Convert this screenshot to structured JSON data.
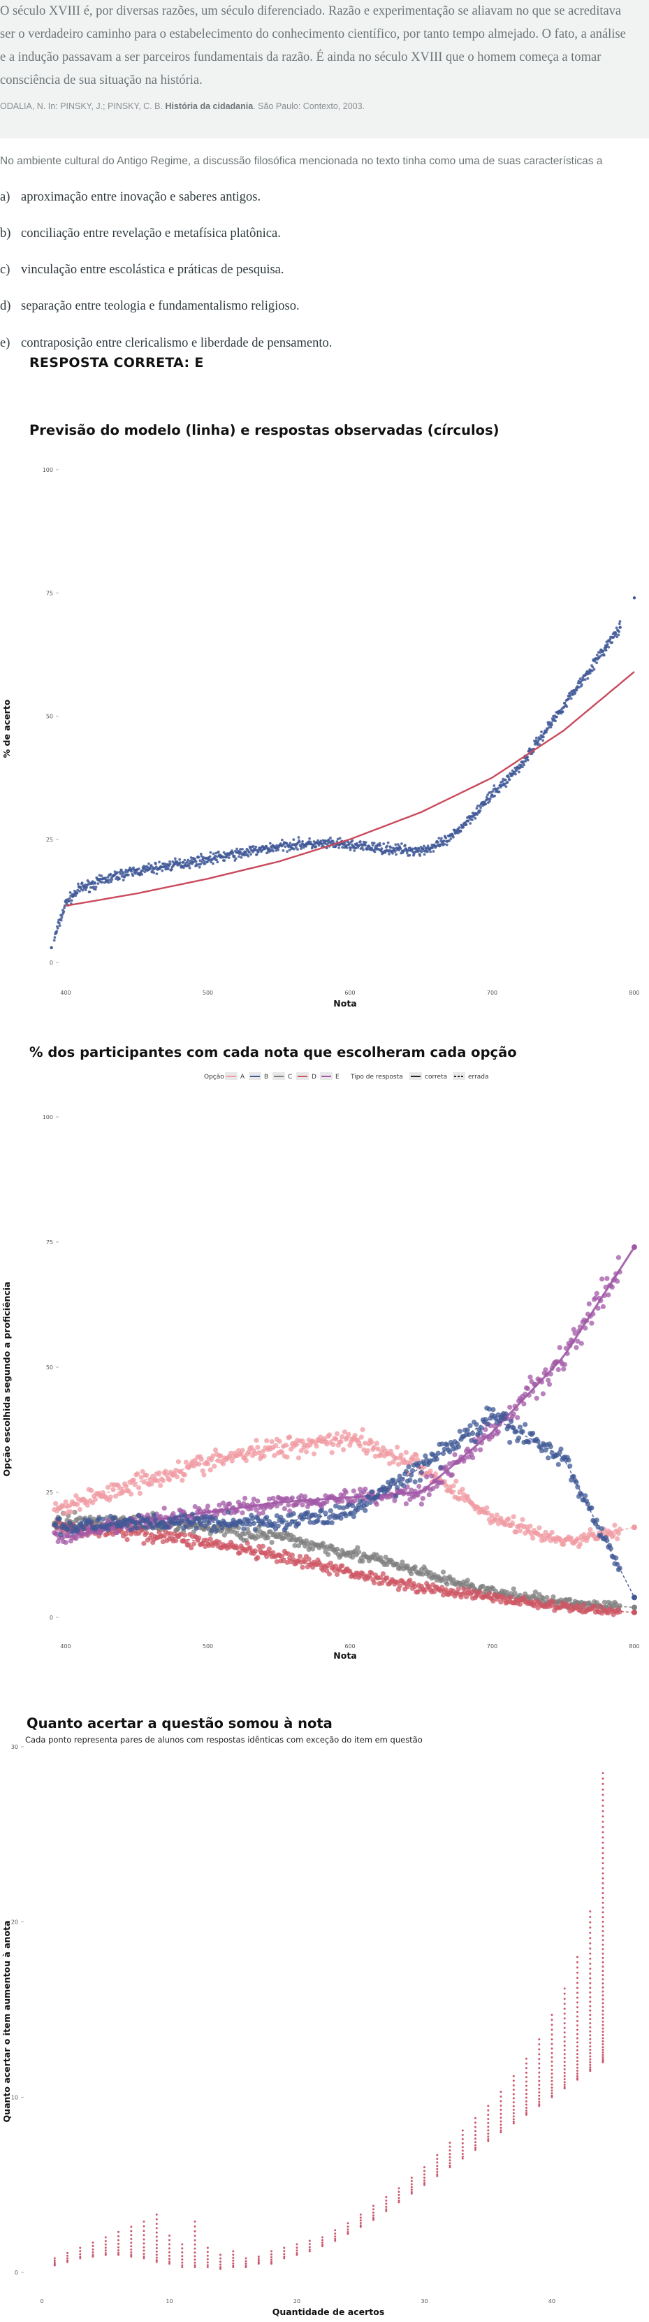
{
  "quote": {
    "text": "O século XVIII é, por diversas razões, um século diferenciado. Razão e experimentação se aliavam no que se acreditava ser o verdadeiro caminho para o estabelecimento do conhecimento científico, por tanto tempo almejado. O fato, a análise e a indução passavam a ser parceiros fundamentais da razão. É ainda no século XVIII que o homem começa a tomar consciência de sua situação na história.",
    "citation_prefix": "ODALIA, N. In: PINSKY, J.; PINSKY, C. B.",
    "citation_title": "História da cidadania",
    "citation_suffix": ". São Paulo: Contexto, 2003."
  },
  "question": "No ambiente cultural do Antigo Regime, a discussão filosófica mencionada no texto tinha como uma de suas características a",
  "alternatives": [
    {
      "letter": "a)",
      "text": "aproximação entre inovação e saberes antigos."
    },
    {
      "letter": "b)",
      "text": "conciliação entre revelação e metafísica platônica."
    },
    {
      "letter": "c)",
      "text": "vinculação entre escolástica e práticas de pesquisa."
    },
    {
      "letter": "d)",
      "text": "separação entre teologia e fundamentalismo religioso."
    },
    {
      "letter": "e)",
      "text": "contraposição entre clericalismo e liberdade de pensamento."
    }
  ],
  "answer": "RESPOSTA CORRETA: E",
  "colors": {
    "blue": "#3f5896",
    "red_line": "#c94a5b",
    "A": "#f09aa2",
    "B": "#3f5896",
    "C": "#7f7f7f",
    "D": "#cd5563",
    "E": "#a158a6",
    "gain": "#c5475d"
  },
  "chart_data": [
    {
      "type": "scatter",
      "title": "Previsão do modelo (linha) e respostas observadas (círculos)",
      "xlabel": "Nota",
      "ylabel": "% de acerto",
      "xlim": [
        390,
        805
      ],
      "ylim": [
        0,
        100
      ],
      "xticks": [
        "400",
        "500",
        "600",
        "700",
        "800"
      ],
      "yticks": [
        "0",
        "25",
        "50",
        "75",
        "100"
      ],
      "grid": false,
      "series": [
        {
          "role": "observed",
          "x": [
            390,
            400,
            410,
            420,
            430,
            440,
            450,
            460,
            470,
            480,
            490,
            500,
            510,
            520,
            530,
            540,
            550,
            560,
            570,
            580,
            590,
            600,
            610,
            620,
            630,
            640,
            650,
            660,
            670,
            680,
            690,
            700,
            710,
            720,
            730,
            740,
            750,
            760,
            770,
            780,
            790,
            800
          ],
          "y": [
            3,
            12,
            15,
            16,
            17,
            18,
            18.5,
            19,
            19.5,
            20,
            20.5,
            21,
            21.5,
            22,
            22.5,
            23,
            23.5,
            24,
            24,
            24,
            24,
            23.8,
            23.5,
            23.2,
            23,
            22.8,
            22.8,
            23.5,
            25,
            28,
            31,
            34,
            37,
            40,
            44,
            48,
            52,
            56,
            60,
            64,
            68,
            74
          ]
        },
        {
          "role": "model",
          "x": [
            400,
            450,
            500,
            550,
            600,
            650,
            700,
            750,
            800
          ],
          "y": [
            11.5,
            14,
            17,
            20.5,
            25,
            30.5,
            37.5,
            47,
            59
          ]
        }
      ]
    },
    {
      "type": "scatter",
      "title": "% dos participantes com cada nota que escolheram cada opção",
      "xlabel": "Nota",
      "ylabel": "Opção escolhida segundo a proficiência",
      "xlim": [
        390,
        805
      ],
      "ylim": [
        0,
        100
      ],
      "xticks": [
        "400",
        "500",
        "600",
        "700",
        "800"
      ],
      "yticks": [
        "0",
        "25",
        "50",
        "75",
        "100"
      ],
      "legend": {
        "position": "top",
        "option_label": "Opção",
        "options": [
          "A",
          "B",
          "C",
          "D",
          "E"
        ],
        "type_label": "Tipo de resposta",
        "types": [
          "correta",
          "errada"
        ]
      },
      "x": [
        400,
        450,
        500,
        550,
        600,
        650,
        700,
        750,
        800
      ],
      "series": [
        {
          "name": "A",
          "values": [
            22,
            27,
            31,
            34,
            36,
            30,
            20,
            15,
            18
          ]
        },
        {
          "name": "B",
          "values": [
            18,
            19,
            19,
            19,
            21,
            30,
            40,
            32,
            4
          ]
        },
        {
          "name": "C",
          "values": [
            19,
            19,
            18,
            16,
            13,
            9,
            5,
            3,
            2
          ]
        },
        {
          "name": "D",
          "values": [
            18,
            17,
            15,
            12,
            9,
            6,
            4,
            2,
            1
          ]
        },
        {
          "name": "E",
          "values": [
            16,
            19,
            21,
            23,
            24,
            25,
            37,
            52,
            74
          ]
        }
      ]
    },
    {
      "type": "scatter",
      "title": "Quanto acertar a questão somou à nota",
      "subtitle": "Cada ponto representa pares de alunos com respostas idênticas com exceção do item em questão",
      "xlabel": "Quantidade de acertos",
      "ylabel": "Quanto acertar o item aumentou à anota",
      "xlim": [
        0,
        45
      ],
      "ylim": [
        -0.5,
        30
      ],
      "xticks": [
        "0",
        "10",
        "20",
        "30",
        "40"
      ],
      "yticks": [
        "0",
        "10",
        "20",
        "30"
      ],
      "x": [
        1,
        2,
        3,
        4,
        5,
        6,
        7,
        8,
        9,
        10,
        11,
        12,
        13,
        14,
        15,
        16,
        17,
        18,
        19,
        20,
        21,
        22,
        23,
        24,
        25,
        26,
        27,
        28,
        29,
        30,
        31,
        32,
        33,
        34,
        35,
        36,
        37,
        38,
        39,
        40,
        41,
        42,
        43,
        44
      ],
      "min": [
        0.4,
        0.6,
        0.8,
        0.9,
        1.0,
        1.0,
        0.9,
        0.8,
        0.6,
        0.5,
        0.3,
        0.3,
        0.3,
        0.2,
        0.3,
        0.3,
        0.5,
        0.5,
        0.8,
        1.0,
        1.2,
        1.5,
        1.8,
        2.2,
        2.6,
        3.0,
        3.5,
        4.0,
        4.5,
        5.0,
        5.5,
        6.0,
        6.5,
        7.0,
        7.5,
        8.0,
        8.5,
        9.0,
        9.5,
        10.0,
        10.5,
        11.0,
        11.5,
        12.0
      ],
      "max": [
        0.8,
        1.1,
        1.4,
        1.7,
        2.0,
        2.3,
        2.6,
        2.9,
        3.3,
        2.1,
        1.6,
        2.9,
        1.4,
        1.0,
        1.2,
        0.8,
        0.9,
        1.2,
        1.4,
        1.6,
        1.8,
        2.0,
        2.4,
        2.8,
        3.3,
        3.8,
        4.3,
        4.8,
        5.4,
        6.0,
        6.7,
        7.4,
        8.1,
        8.8,
        9.5,
        10.3,
        11.2,
        12.2,
        13.3,
        14.7,
        16.2,
        18.0,
        20.6,
        28.5
      ]
    }
  ]
}
